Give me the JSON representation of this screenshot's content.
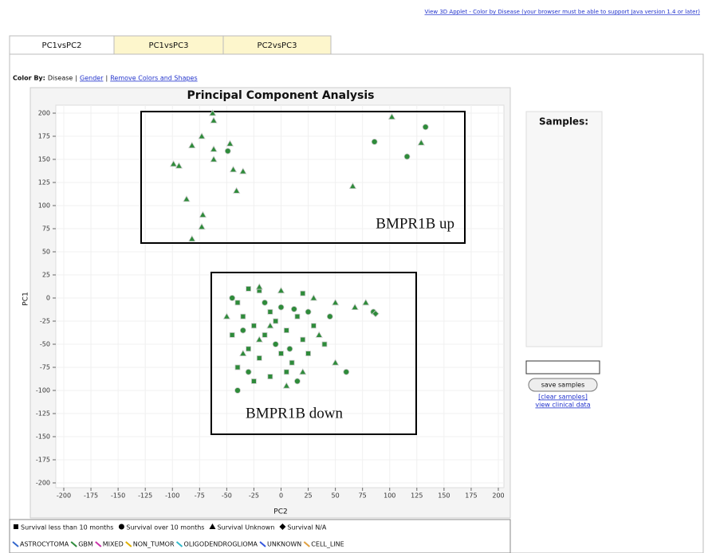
{
  "header": {
    "link": "View 3D Applet - Color by Disease (your browser must be able to support Java version 1.4 or later)"
  },
  "tabs": [
    "PC1vsPC2",
    "PC1vsPC3",
    "PC2vsPC3"
  ],
  "color_by": {
    "label": "Color By:",
    "current": "Disease",
    "separator": "|",
    "links": [
      "Gender",
      "Remove Colors and Shapes"
    ]
  },
  "chart_data": {
    "type": "scatter",
    "title": "Principal Component Analysis",
    "x_label": "PC2",
    "y_label": "PC1",
    "xlim": [
      -200,
      200
    ],
    "ylim": [
      -200,
      200
    ],
    "xticks": [
      -200,
      -175,
      -150,
      -125,
      -100,
      -75,
      -50,
      -25,
      0,
      25,
      50,
      75,
      100,
      125,
      150,
      175,
      200
    ],
    "yticks": [
      -200,
      -175,
      -150,
      -125,
      -100,
      -75,
      -50,
      -25,
      0,
      25,
      50,
      75,
      100,
      125,
      150,
      175,
      200
    ],
    "grid": true,
    "annotations": [
      "BMPR1B up",
      "BMPR1B down"
    ],
    "series": [
      {
        "name": "Survival less than 10 months",
        "shape": "square",
        "color": "#2e8b3a",
        "x": [
          -30,
          -20,
          -40,
          -35,
          -25,
          -15,
          -5,
          5,
          15,
          20,
          -30,
          -20,
          0,
          10,
          25,
          -40,
          -10,
          5,
          30,
          40,
          -45,
          -10,
          20,
          -25
        ],
        "values": [
          10,
          8,
          -5,
          -20,
          -30,
          -40,
          -25,
          -35,
          -20,
          -45,
          -55,
          -65,
          -60,
          -70,
          -60,
          -75,
          -85,
          -80,
          -30,
          -50,
          -40,
          -15,
          5,
          -90
        ]
      },
      {
        "name": "Survival over 10 months",
        "shape": "circle",
        "color": "#2e8b3a",
        "x": [
          -45,
          -35,
          -15,
          0,
          12,
          25,
          -5,
          8,
          -30,
          15,
          -40,
          45,
          60,
          85,
          86,
          116,
          133,
          -49
        ],
        "values": [
          0,
          -35,
          -5,
          -10,
          -12,
          -15,
          -50,
          -55,
          -80,
          -90,
          -100,
          -20,
          -80,
          -15,
          169,
          153,
          185,
          159
        ]
      },
      {
        "name": "Survival Unknown",
        "shape": "triangle",
        "color": "#2e8b3a",
        "x": [
          -20,
          0,
          30,
          50,
          68,
          78,
          -10,
          -50,
          35,
          -35,
          20,
          50,
          -20,
          5,
          -63,
          -62,
          -73,
          -82,
          -62,
          -47,
          -62,
          -99,
          -94,
          -44,
          -35,
          -41,
          -87,
          -72,
          -73,
          -82,
          66,
          102,
          129
        ],
        "values": [
          12,
          8,
          0,
          -5,
          -10,
          -5,
          -30,
          -20,
          -40,
          -60,
          -80,
          -70,
          -45,
          -95,
          200,
          192,
          175,
          165,
          161,
          167,
          150,
          145,
          143,
          139,
          137,
          116,
          107,
          90,
          77,
          64,
          121,
          196,
          168
        ]
      },
      {
        "name": "Survival N/A",
        "shape": "diamond",
        "color": "#2e8b3a",
        "x": [
          87
        ],
        "values": [
          -17
        ]
      }
    ],
    "disease_legend": [
      {
        "name": "ASTROCYTOMA",
        "color": "#3366cc"
      },
      {
        "name": "GBM",
        "color": "#2e8b3a"
      },
      {
        "name": "MIXED",
        "color": "#cc33aa"
      },
      {
        "name": "NON_TUMOR",
        "color": "#e0b000"
      },
      {
        "name": "OLIGODENDROGLIOMA",
        "color": "#33bbcc"
      },
      {
        "name": "UNKNOWN",
        "color": "#3355dd"
      },
      {
        "name": "CELL_LINE",
        "color": "#e0a040"
      }
    ]
  },
  "samples": {
    "title": "Samples:",
    "save_button": "save samples",
    "links": [
      "[clear samples]",
      "view clinical data"
    ]
  }
}
